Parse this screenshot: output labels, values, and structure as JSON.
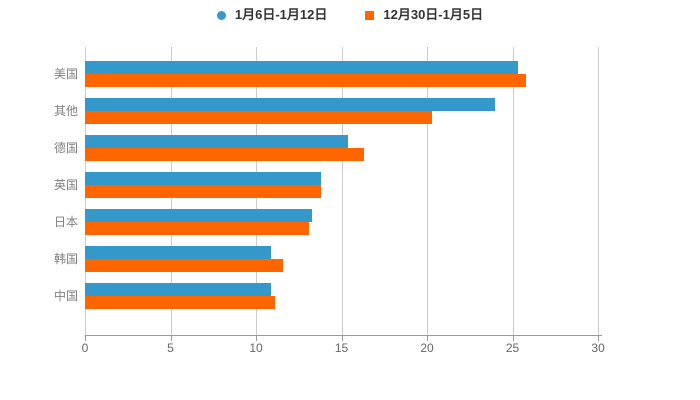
{
  "legend": {
    "items": [
      {
        "label": "1月6日-1月12日",
        "marker": "circle",
        "color": "#3498cb"
      },
      {
        "label": "12月30日-1月5日",
        "marker": "square",
        "color": "#ff6600"
      }
    ]
  },
  "chart_data": {
    "type": "bar",
    "orientation": "horizontal",
    "title": "",
    "categories": [
      "美国",
      "其他",
      "德国",
      "英国",
      "日本",
      "韩国",
      "中国"
    ],
    "series": [
      {
        "name": "1月6日-1月12日",
        "color": "#3498cb",
        "values": [
          25.3,
          24.0,
          15.4,
          13.8,
          13.3,
          10.9,
          10.9
        ]
      },
      {
        "name": "12月30日-1月5日",
        "color": "#ff6600",
        "values": [
          25.8,
          20.3,
          16.3,
          13.8,
          13.1,
          11.6,
          11.1
        ]
      }
    ],
    "x_ticks": [
      "0",
      "5",
      "10",
      "15",
      "20",
      "25",
      "30"
    ],
    "x_tick_values": [
      0,
      5,
      10,
      15,
      20,
      25,
      30
    ],
    "xlim": [
      0,
      30.17
    ],
    "grid": "vertical",
    "legend_position": "top",
    "background": "#ffffff",
    "colors": {
      "grid": "#cccccc",
      "axis": "#999999",
      "tick_label": "#666666",
      "category_label": "#7f7f7f",
      "legend_text": "#333333"
    }
  }
}
